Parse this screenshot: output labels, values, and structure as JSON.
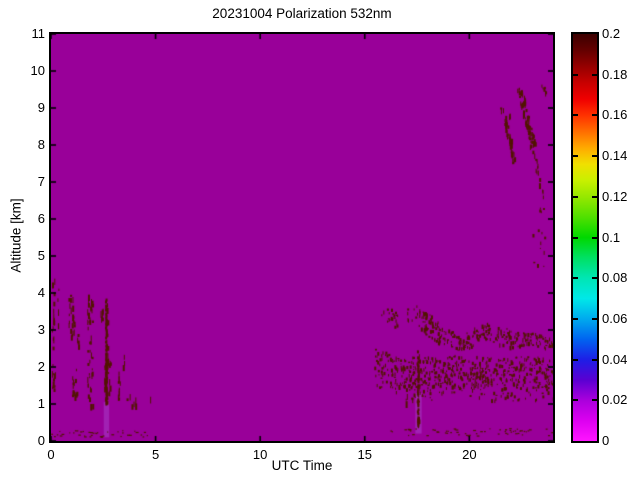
{
  "chart_data": {
    "type": "heatmap",
    "title": "20231004 Polarization 532nm",
    "xlabel": "UTC Time",
    "ylabel": "Altitude [km]",
    "x_range": [
      0,
      24
    ],
    "y_range": [
      0,
      11
    ],
    "grid": false,
    "x_ticks": {
      "values": [
        0,
        5,
        10,
        15,
        20
      ],
      "labels": [
        "0",
        "5",
        "10",
        "15",
        "20"
      ]
    },
    "y_ticks": {
      "values": [
        0,
        1,
        2,
        3,
        4,
        5,
        6,
        7,
        8,
        9,
        10,
        11
      ],
      "labels": [
        "0",
        "1",
        "2",
        "3",
        "4",
        "5",
        "6",
        "7",
        "8",
        "9",
        "10",
        "11"
      ]
    },
    "colorbar": {
      "min": 0,
      "max": 0.2,
      "tick_values": [
        0.2,
        0.18,
        0.16,
        0.14,
        0.12,
        0.1,
        0.08,
        0.06,
        0.04,
        0.02,
        0
      ],
      "tick_labels": [
        "0.2",
        "0.18",
        "0.16",
        "0.14",
        "0.12",
        "0.1",
        "0.08",
        "0.06",
        "0.04",
        "0.02",
        "0"
      ],
      "stops": [
        {
          "p": 0.0,
          "c": "#3C0000"
        },
        {
          "p": 0.04,
          "c": "#640000"
        },
        {
          "p": 0.08,
          "c": "#960000"
        },
        {
          "p": 0.12,
          "c": "#C80000"
        },
        {
          "p": 0.16,
          "c": "#F00000"
        },
        {
          "p": 0.2,
          "c": "#FF3200"
        },
        {
          "p": 0.24,
          "c": "#FF6E00"
        },
        {
          "p": 0.28,
          "c": "#FFAA00"
        },
        {
          "p": 0.32,
          "c": "#F0E000"
        },
        {
          "p": 0.36,
          "c": "#C8F000"
        },
        {
          "p": 0.4,
          "c": "#96E800"
        },
        {
          "p": 0.45,
          "c": "#50E000"
        },
        {
          "p": 0.5,
          "c": "#00D800"
        },
        {
          "p": 0.55,
          "c": "#00E064"
        },
        {
          "p": 0.6,
          "c": "#00E6B4"
        },
        {
          "p": 0.65,
          "c": "#00E8E8"
        },
        {
          "p": 0.7,
          "c": "#00AAEE"
        },
        {
          "p": 0.75,
          "c": "#0064F0"
        },
        {
          "p": 0.8,
          "c": "#1E1EE6"
        },
        {
          "p": 0.85,
          "c": "#5A00D2"
        },
        {
          "p": 0.9,
          "c": "#AA00DC"
        },
        {
          "p": 0.95,
          "c": "#DC00F0"
        },
        {
          "p": 1.0,
          "c": "#FF14FF"
        }
      ]
    },
    "colors": {
      "background": "#990099",
      "speckle": "#521500",
      "light_patch": "#A83CC8",
      "frame": "#000000"
    },
    "features": {
      "vertical_streaks": [
        {
          "u": 0.1,
          "w": 0.12,
          "a0": 2.55,
          "a1": 4.45,
          "d": 0.5
        },
        {
          "u": 0.12,
          "w": 0.18,
          "a0": 1.35,
          "a1": 2.15,
          "d": 0.65
        },
        {
          "u": 0.35,
          "w": 0.1,
          "a0": 3.15,
          "a1": 4.15,
          "d": 0.4
        },
        {
          "u": 0.95,
          "w": 0.3,
          "a0": 2.85,
          "a1": 4.05,
          "d": 0.45
        },
        {
          "u": 1.1,
          "w": 0.28,
          "a0": 1.25,
          "a1": 2.05,
          "d": 0.55
        },
        {
          "u": 1.3,
          "w": 0.1,
          "a0": 2.2,
          "a1": 3.3,
          "d": 0.3
        },
        {
          "u": 1.85,
          "w": 0.26,
          "a0": 0.95,
          "a1": 4.0,
          "d": 0.4
        },
        {
          "u": 2.4,
          "w": 0.16,
          "a0": 2.95,
          "a1": 3.8,
          "d": 0.35
        },
        {
          "u": 2.65,
          "w": 0.1,
          "a0": 0.95,
          "a1": 3.85,
          "d": 0.95
        },
        {
          "u": 2.68,
          "w": 0.3,
          "a0": 1.3,
          "a1": 2.3,
          "d": 0.55
        },
        {
          "u": 3.2,
          "w": 0.22,
          "a0": 1.15,
          "a1": 2.05,
          "d": 0.38
        },
        {
          "u": 3.45,
          "w": 0.12,
          "a0": 1.6,
          "a1": 2.6,
          "d": 0.22
        },
        {
          "u": 3.85,
          "w": 0.55,
          "a0": 0.92,
          "a1": 1.28,
          "d": 0.25
        },
        {
          "u": 4.7,
          "w": 0.4,
          "a0": 1.0,
          "a1": 1.22,
          "d": 0.1
        },
        {
          "u": 17.0,
          "w": 0.08,
          "a0": 1.0,
          "a1": 1.35,
          "d": 0.4
        },
        {
          "u": 17.55,
          "w": 0.1,
          "a0": 0.45,
          "a1": 2.45,
          "d": 0.92
        }
      ],
      "band_segments": [
        {
          "u0": 17.45,
          "u1": 18.2,
          "c0": 3.55,
          "c1": 3.3,
          "th": 0.25,
          "d": 0.5
        },
        {
          "u0": 17.55,
          "u1": 18.6,
          "c0": 3.3,
          "c1": 2.95,
          "th": 0.6,
          "d": 0.8
        },
        {
          "u0": 18.6,
          "u1": 19.7,
          "c0": 2.9,
          "c1": 2.65,
          "th": 0.45,
          "d": 0.6
        },
        {
          "u0": 19.7,
          "u1": 20.7,
          "c0": 2.68,
          "c1": 3.0,
          "th": 0.45,
          "d": 0.55
        },
        {
          "u0": 20.7,
          "u1": 22.1,
          "c0": 3.0,
          "c1": 2.78,
          "th": 0.5,
          "d": 0.6
        },
        {
          "u0": 22.1,
          "u1": 24.0,
          "c0": 2.78,
          "c1": 2.68,
          "th": 0.4,
          "d": 0.65
        }
      ],
      "speckle_regions": [
        {
          "u0": 15.7,
          "u1": 15.95,
          "a0": 3.35,
          "a1": 3.6,
          "d": 0.35
        },
        {
          "u0": 16.05,
          "u1": 16.55,
          "a0": 3.1,
          "a1": 3.6,
          "d": 0.75
        },
        {
          "u0": 16.9,
          "u1": 17.45,
          "a0": 3.25,
          "a1": 3.6,
          "d": 0.35
        },
        {
          "u0": 15.45,
          "u1": 16.2,
          "a0": 1.45,
          "a1": 2.5,
          "d": 0.4
        },
        {
          "u0": 16.2,
          "u1": 24.0,
          "a0": 1.45,
          "a1": 2.3,
          "d": 0.7
        },
        {
          "u0": 16.4,
          "u1": 24.0,
          "a0": 1.1,
          "a1": 1.5,
          "d": 0.22
        },
        {
          "u0": 19.2,
          "u1": 20.2,
          "a0": 2.3,
          "a1": 2.55,
          "d": 0.2
        },
        {
          "u0": 23.0,
          "u1": 23.6,
          "a0": 4.6,
          "a1": 6.7,
          "d": 0.1
        }
      ],
      "diagonal_streaks": [
        {
          "u0": 21.55,
          "a0": 9.05,
          "u1": 22.15,
          "a1": 7.55,
          "w": 2,
          "d": 0.75
        },
        {
          "u0": 21.75,
          "a0": 9.3,
          "u1": 21.95,
          "a1": 8.8,
          "w": 1,
          "d": 0.5
        },
        {
          "u0": 22.4,
          "a0": 9.55,
          "u1": 23.05,
          "a1": 7.95,
          "w": 3,
          "d": 0.9
        },
        {
          "u0": 23.05,
          "a0": 7.9,
          "u1": 23.5,
          "a1": 6.6,
          "w": 1.5,
          "d": 0.45
        },
        {
          "u0": 23.45,
          "a0": 9.75,
          "u1": 23.62,
          "a1": 9.35,
          "w": 1.5,
          "d": 0.6
        }
      ],
      "bottom_lines": [
        {
          "u0": 0.0,
          "u1": 4.75,
          "a0": 0.12,
          "a1": 0.3,
          "d": 0.5
        },
        {
          "u0": 16.2,
          "u1": 24.0,
          "a0": 0.15,
          "a1": 0.35,
          "d": 0.45
        }
      ],
      "light_patches": [
        {
          "u0": 2.52,
          "u1": 2.78,
          "a0": 0.1,
          "a1": 1.05
        },
        {
          "u0": 17.42,
          "u1": 17.72,
          "a0": 0.2,
          "a1": 1.3
        }
      ]
    }
  }
}
